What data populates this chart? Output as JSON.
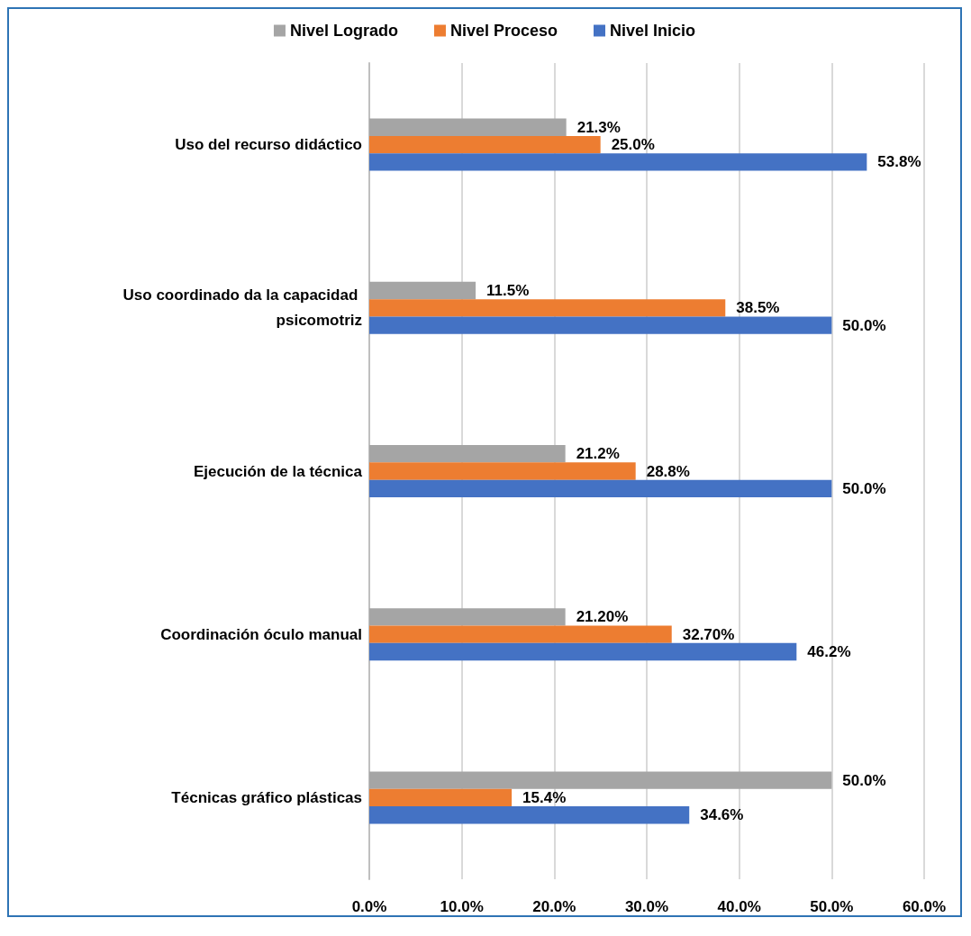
{
  "chart_data": {
    "type": "bar",
    "orientation": "horizontal",
    "categories": [
      "Uso del recurso didáctico",
      "Uso coordinado da la capacidad psicomotriz",
      "Ejecución de la técnica",
      "Coordinación óculo manual",
      "Técnicas gráfico plásticas"
    ],
    "series": [
      {
        "name": "Nivel Logrado",
        "color": "#a5a5a5",
        "values": [
          21.3,
          11.5,
          21.2,
          21.2,
          50.0
        ],
        "value_labels": [
          "21.3%",
          "11.5%",
          "21.2%",
          "21.20%",
          "50.0%"
        ]
      },
      {
        "name": "Nivel Proceso",
        "color": "#ed7d31",
        "values": [
          25.0,
          38.5,
          28.8,
          32.7,
          15.4
        ],
        "value_labels": [
          "25.0%",
          "38.5%",
          "28.8%",
          "32.70%",
          "15.4%"
        ]
      },
      {
        "name": "Nivel Inicio",
        "color": "#4472c4",
        "values": [
          53.8,
          50.0,
          50.0,
          46.2,
          34.6
        ],
        "value_labels": [
          "53.8%",
          "50.0%",
          "50.0%",
          "46.2%",
          "34.6%"
        ]
      }
    ],
    "xlim": [
      0,
      60
    ],
    "xticks": [
      {
        "value": 0,
        "label": "0.0%"
      },
      {
        "value": 10,
        "label": "10.0%"
      },
      {
        "value": 20,
        "label": "20.0%"
      },
      {
        "value": 30,
        "label": "30.0%"
      },
      {
        "value": 40,
        "label": "40.0%"
      },
      {
        "value": 50,
        "label": "50.0%"
      },
      {
        "value": 60,
        "label": "60.0%"
      }
    ],
    "grid": "x",
    "legend": "top"
  }
}
